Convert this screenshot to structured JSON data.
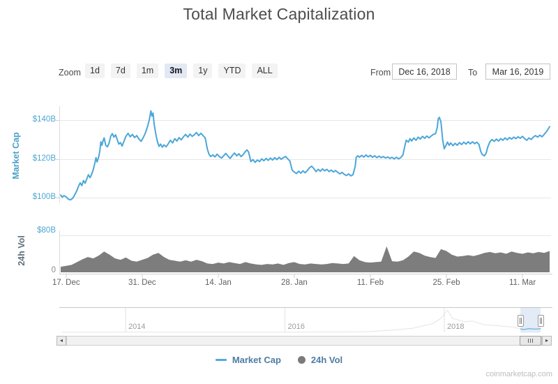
{
  "title": "Total Market Capitalization",
  "controls": {
    "zoom_label": "Zoom",
    "zoom_buttons": [
      "1d",
      "7d",
      "1m",
      "3m",
      "1y",
      "YTD",
      "ALL"
    ],
    "selected_zoom": "3m",
    "from_label": "From",
    "from_value": "Dec 16, 2018",
    "to_label": "To",
    "to_value": "Mar 16, 2019"
  },
  "legend": {
    "marketcap_label": "Market Cap",
    "vol_label": "24h Vol"
  },
  "watermark": "coinmarketcap.com",
  "colors": {
    "marketcap_line": "#4ba6d9",
    "volume_fill": "#7d7d7d",
    "axis_label_blue": "#4fa7d2",
    "grid": "#e7e7e7",
    "legend_text": "#4d7ca3",
    "selected_button_bg": "#e2e8f4",
    "navigator_mask": "rgba(102,144,205,0.18)"
  },
  "chart_data": {
    "type": [
      "line",
      "area"
    ],
    "title": "Total Market Capitalization",
    "xaxis": {
      "start_date": "Dec 16, 2018",
      "end_date": "Mar 16, 2019",
      "tick_labels": [
        "17. Dec",
        "31. Dec",
        "14. Jan",
        "28. Jan",
        "11. Feb",
        "25. Feb",
        "11. Mar"
      ],
      "tick_days": [
        1,
        15,
        29,
        43,
        57,
        71,
        85
      ],
      "day_range": [
        0,
        90
      ]
    },
    "yaxis_marketcap": {
      "title": "Market Cap",
      "ticks": [
        "$140B",
        "$120B",
        "$100B"
      ],
      "tick_values": [
        140,
        120,
        100
      ],
      "unit": "$B"
    },
    "yaxis_volume": {
      "title": "24h Vol",
      "ticks": [
        "$80B",
        "0"
      ],
      "tick_values": [
        80,
        0
      ],
      "unit": "$B"
    },
    "marketcap_series": {
      "name": "Market Cap",
      "unit": "billions USD",
      "points": [
        [
          0,
          101.3
        ],
        [
          0.3,
          100.2
        ],
        [
          0.6,
          101.0
        ],
        [
          1,
          100.4
        ],
        [
          1.4,
          99.2
        ],
        [
          1.8,
          98.8
        ],
        [
          2.2,
          99.6
        ],
        [
          2.6,
          101.5
        ],
        [
          3,
          103.8
        ],
        [
          3.3,
          106.0
        ],
        [
          3.6,
          107.6
        ],
        [
          3.9,
          106.2
        ],
        [
          4.2,
          108.8
        ],
        [
          4.5,
          107.4
        ],
        [
          4.8,
          109.6
        ],
        [
          5.1,
          111.8
        ],
        [
          5.4,
          110.3
        ],
        [
          5.7,
          112.0
        ],
        [
          6,
          114.5
        ],
        [
          6.3,
          118.0
        ],
        [
          6.5,
          120.6
        ],
        [
          6.7,
          118.4
        ],
        [
          7,
          121.0
        ],
        [
          7.2,
          124.0
        ],
        [
          7.4,
          128.8
        ],
        [
          7.6,
          127.0
        ],
        [
          7.8,
          129.4
        ],
        [
          8,
          130.8
        ],
        [
          8.3,
          127.0
        ],
        [
          8.6,
          126.2
        ],
        [
          8.9,
          128.0
        ],
        [
          9.2,
          131.6
        ],
        [
          9.5,
          133.0
        ],
        [
          9.8,
          131.2
        ],
        [
          10.1,
          132.4
        ],
        [
          10.4,
          130.0
        ],
        [
          10.7,
          127.6
        ],
        [
          11,
          128.4
        ],
        [
          11.3,
          126.6
        ],
        [
          11.6,
          128.8
        ],
        [
          12,
          131.6
        ],
        [
          12.4,
          133.2
        ],
        [
          12.8,
          131.4
        ],
        [
          13.2,
          132.6
        ],
        [
          13.6,
          131.0
        ],
        [
          14,
          132.0
        ],
        [
          14.4,
          130.2
        ],
        [
          14.8,
          129.0
        ],
        [
          15.2,
          131.0
        ],
        [
          15.6,
          133.4
        ],
        [
          16,
          136.8
        ],
        [
          16.3,
          140.0
        ],
        [
          16.6,
          144.8
        ],
        [
          16.8,
          142.0
        ],
        [
          17,
          143.6
        ],
        [
          17.2,
          138.0
        ],
        [
          17.5,
          133.0
        ],
        [
          17.8,
          129.0
        ],
        [
          18.1,
          126.4
        ],
        [
          18.4,
          127.6
        ],
        [
          18.7,
          126.0
        ],
        [
          19,
          127.2
        ],
        [
          19.4,
          126.2
        ],
        [
          19.8,
          127.8
        ],
        [
          20.2,
          129.6
        ],
        [
          20.6,
          128.2
        ],
        [
          21,
          130.4
        ],
        [
          21.4,
          129.2
        ],
        [
          21.8,
          131.0
        ],
        [
          22.2,
          129.8
        ],
        [
          22.6,
          131.4
        ],
        [
          23,
          132.6
        ],
        [
          23.4,
          131.2
        ],
        [
          23.8,
          132.8
        ],
        [
          24.2,
          131.6
        ],
        [
          24.6,
          132.4
        ],
        [
          25,
          133.6
        ],
        [
          25.4,
          132.0
        ],
        [
          25.8,
          133.2
        ],
        [
          26.2,
          132.0
        ],
        [
          26.6,
          130.8
        ],
        [
          27,
          125.0
        ],
        [
          27.3,
          122.4
        ],
        [
          27.6,
          121.2
        ],
        [
          28,
          122.0
        ],
        [
          28.4,
          121.0
        ],
        [
          28.8,
          122.4
        ],
        [
          29.2,
          121.2
        ],
        [
          29.6,
          120.4
        ],
        [
          30,
          121.6
        ],
        [
          30.4,
          122.8
        ],
        [
          30.8,
          121.4
        ],
        [
          31.2,
          120.2
        ],
        [
          31.6,
          121.8
        ],
        [
          32,
          123.0
        ],
        [
          32.4,
          121.6
        ],
        [
          32.8,
          122.6
        ],
        [
          33.2,
          121.2
        ],
        [
          33.6,
          122.2
        ],
        [
          34,
          123.8
        ],
        [
          34.3,
          124.6
        ],
        [
          34.6,
          123.4
        ],
        [
          35,
          118.6
        ],
        [
          35.4,
          119.6
        ],
        [
          35.8,
          118.2
        ],
        [
          36.2,
          119.4
        ],
        [
          36.6,
          118.6
        ],
        [
          37,
          120.0
        ],
        [
          37.4,
          119.0
        ],
        [
          37.8,
          120.2
        ],
        [
          38.2,
          119.2
        ],
        [
          38.6,
          120.4
        ],
        [
          39,
          119.4
        ],
        [
          39.4,
          120.6
        ],
        [
          39.8,
          119.6
        ],
        [
          40.2,
          120.8
        ],
        [
          40.6,
          119.8
        ],
        [
          41,
          120.6
        ],
        [
          41.4,
          121.2
        ],
        [
          41.8,
          120.0
        ],
        [
          42.2,
          118.8
        ],
        [
          42.6,
          114.2
        ],
        [
          43,
          113.2
        ],
        [
          43.4,
          112.4
        ],
        [
          43.8,
          113.6
        ],
        [
          44.2,
          112.6
        ],
        [
          44.6,
          113.8
        ],
        [
          45,
          112.8
        ],
        [
          45.4,
          114.0
        ],
        [
          45.8,
          115.4
        ],
        [
          46.2,
          116.2
        ],
        [
          46.6,
          115.0
        ],
        [
          47,
          113.4
        ],
        [
          47.4,
          114.6
        ],
        [
          47.8,
          113.6
        ],
        [
          48.2,
          114.8
        ],
        [
          48.6,
          113.8
        ],
        [
          49,
          114.6
        ],
        [
          49.4,
          113.4
        ],
        [
          49.8,
          114.2
        ],
        [
          50.2,
          113.2
        ],
        [
          50.6,
          114.0
        ],
        [
          51,
          113.0
        ],
        [
          51.4,
          112.2
        ],
        [
          51.8,
          113.0
        ],
        [
          52.2,
          112.0
        ],
        [
          52.6,
          111.4
        ],
        [
          53,
          112.2
        ],
        [
          53.4,
          111.2
        ],
        [
          53.8,
          111.8
        ],
        [
          54.2,
          116.0
        ],
        [
          54.4,
          120.8
        ],
        [
          54.7,
          121.6
        ],
        [
          55,
          120.8
        ],
        [
          55.4,
          121.8
        ],
        [
          55.8,
          120.9
        ],
        [
          56.2,
          122.0
        ],
        [
          56.6,
          121.0
        ],
        [
          57,
          121.8
        ],
        [
          57.4,
          120.8
        ],
        [
          57.8,
          121.6
        ],
        [
          58.2,
          120.6
        ],
        [
          58.6,
          121.4
        ],
        [
          59,
          120.6
        ],
        [
          59.4,
          121.2
        ],
        [
          59.8,
          120.4
        ],
        [
          60.2,
          121.0
        ],
        [
          60.6,
          120.2
        ],
        [
          61,
          120.8
        ],
        [
          61.4,
          120.0
        ],
        [
          61.8,
          120.8
        ],
        [
          62.2,
          120.0
        ],
        [
          62.6,
          120.6
        ],
        [
          63,
          122.0
        ],
        [
          63.3,
          126.0
        ],
        [
          63.6,
          129.6
        ],
        [
          64,
          128.6
        ],
        [
          64.3,
          130.4
        ],
        [
          64.6,
          129.2
        ],
        [
          65,
          130.8
        ],
        [
          65.4,
          129.6
        ],
        [
          65.8,
          131.2
        ],
        [
          66.2,
          130.2
        ],
        [
          66.6,
          131.6
        ],
        [
          67,
          130.6
        ],
        [
          67.4,
          131.8
        ],
        [
          67.8,
          130.8
        ],
        [
          68.2,
          131.8
        ],
        [
          68.6,
          132.6
        ],
        [
          69,
          133.0
        ],
        [
          69.3,
          136.0
        ],
        [
          69.5,
          140.6
        ],
        [
          69.7,
          141.4
        ],
        [
          70,
          139.0
        ],
        [
          70.3,
          130.0
        ],
        [
          70.6,
          125.2
        ],
        [
          70.9,
          126.8
        ],
        [
          71.2,
          128.6
        ],
        [
          71.5,
          127.0
        ],
        [
          71.8,
          128.2
        ],
        [
          72.2,
          126.8
        ],
        [
          72.6,
          128.0
        ],
        [
          73,
          127.0
        ],
        [
          73.4,
          128.4
        ],
        [
          73.8,
          127.4
        ],
        [
          74.2,
          128.6
        ],
        [
          74.6,
          127.6
        ],
        [
          75,
          128.8
        ],
        [
          75.4,
          127.8
        ],
        [
          75.8,
          128.8
        ],
        [
          76.2,
          127.8
        ],
        [
          76.6,
          128.6
        ],
        [
          77,
          127.4
        ],
        [
          77.3,
          124.0
        ],
        [
          77.6,
          122.2
        ],
        [
          78,
          121.6
        ],
        [
          78.3,
          122.8
        ],
        [
          78.6,
          126.0
        ],
        [
          79,
          128.8
        ],
        [
          79.4,
          130.0
        ],
        [
          79.8,
          129.0
        ],
        [
          80.2,
          130.2
        ],
        [
          80.6,
          129.2
        ],
        [
          81,
          130.4
        ],
        [
          81.4,
          129.6
        ],
        [
          81.8,
          130.8
        ],
        [
          82.2,
          129.8
        ],
        [
          82.6,
          131.0
        ],
        [
          83,
          130.2
        ],
        [
          83.4,
          131.2
        ],
        [
          83.8,
          130.4
        ],
        [
          84.2,
          131.4
        ],
        [
          84.6,
          130.6
        ],
        [
          85,
          131.6
        ],
        [
          85.4,
          130.4
        ],
        [
          85.8,
          129.6
        ],
        [
          86.2,
          130.8
        ],
        [
          86.6,
          130.0
        ],
        [
          87,
          131.2
        ],
        [
          87.4,
          132.0
        ],
        [
          87.8,
          131.2
        ],
        [
          88.2,
          132.2
        ],
        [
          88.6,
          131.4
        ],
        [
          89,
          132.6
        ],
        [
          89.3,
          133.6
        ],
        [
          89.6,
          134.8
        ],
        [
          90,
          136.6
        ]
      ]
    },
    "volume_series": {
      "name": "24h Vol",
      "unit": "billions USD",
      "start_day": 0,
      "values": [
        12,
        14,
        16,
        22,
        28,
        33,
        30,
        36,
        45,
        38,
        30,
        27,
        32,
        25,
        23,
        27,
        31,
        38,
        42,
        33,
        27,
        25,
        23,
        26,
        23,
        27,
        24,
        19,
        18,
        21,
        19,
        22,
        20,
        18,
        22,
        19,
        17,
        16,
        18,
        17,
        19,
        16,
        20,
        22,
        18,
        17,
        19,
        18,
        17,
        18,
        20,
        19,
        18,
        19,
        35,
        26,
        22,
        21,
        22,
        23,
        56,
        24,
        23,
        26,
        34,
        45,
        42,
        36,
        33,
        31,
        50,
        46,
        38,
        34,
        35,
        37,
        35,
        38,
        42,
        44,
        41,
        43,
        40,
        45,
        42,
        40,
        43,
        41,
        44,
        42,
        46
      ]
    },
    "navigator": {
      "year_labels": [
        "2014",
        "2016",
        "2018"
      ],
      "year_values": [
        2014,
        2016,
        2018
      ],
      "selection_years": [
        2018.955,
        2019.21
      ],
      "series_unit": "billions USD",
      "series": [
        [
          2013.2,
          2
        ],
        [
          2013.6,
          8
        ],
        [
          2014,
          11
        ],
        [
          2014.5,
          7
        ],
        [
          2015,
          4
        ],
        [
          2015.5,
          4
        ],
        [
          2016,
          8
        ],
        [
          2016.5,
          12
        ],
        [
          2017,
          19
        ],
        [
          2017.3,
          70
        ],
        [
          2017.6,
          150
        ],
        [
          2017.85,
          320
        ],
        [
          2017.95,
          500
        ],
        [
          2018.04,
          820
        ],
        [
          2018.1,
          520
        ],
        [
          2018.25,
          390
        ],
        [
          2018.35,
          420
        ],
        [
          2018.5,
          280
        ],
        [
          2018.65,
          250
        ],
        [
          2018.8,
          215
        ],
        [
          2018.88,
          185
        ],
        [
          2018.95,
          130
        ],
        [
          2019.0,
          102
        ],
        [
          2019.04,
          128
        ],
        [
          2019.08,
          135
        ],
        [
          2019.12,
          122
        ],
        [
          2019.16,
          120
        ],
        [
          2019.21,
          137
        ]
      ]
    }
  }
}
